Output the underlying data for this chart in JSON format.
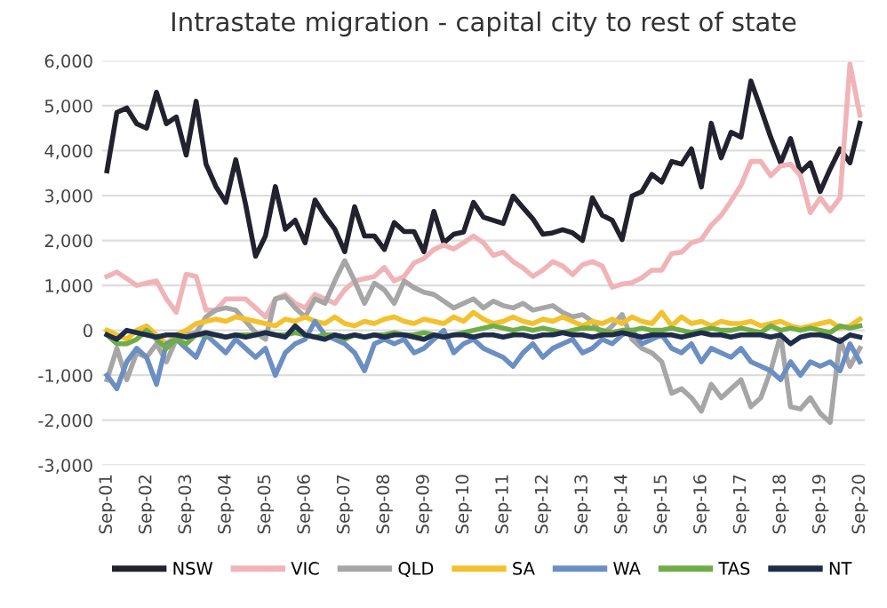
{
  "chart_data": {
    "type": "line",
    "title": "Intrastate migration - capital city to rest of state",
    "categories": [
      "Sep-01",
      null,
      null,
      null,
      "Sep-02",
      null,
      null,
      null,
      "Sep-03",
      null,
      null,
      null,
      "Sep-04",
      null,
      null,
      null,
      "Sep-05",
      null,
      null,
      null,
      "Sep-06",
      null,
      null,
      null,
      "Sep-07",
      null,
      null,
      null,
      "Sep-08",
      null,
      null,
      null,
      "Sep-09",
      null,
      null,
      null,
      "Sep-10",
      null,
      null,
      null,
      "Sep-11",
      null,
      null,
      null,
      "Sep-12",
      null,
      null,
      null,
      "Sep-13",
      null,
      null,
      null,
      "Sep-14",
      null,
      null,
      null,
      "Sep-15",
      null,
      null,
      null,
      "Sep-16",
      null,
      null,
      null,
      "Sep-17",
      null,
      null,
      null,
      "Sep-18",
      null,
      null,
      null,
      "Sep-19",
      null,
      null,
      null,
      "Sep-20"
    ],
    "ylim": [
      -3000,
      6000
    ],
    "yticks": [
      {
        "value": -3000,
        "label": "-3,000"
      },
      {
        "value": -2000,
        "label": "-2,000"
      },
      {
        "value": -1000,
        "label": "-1,000"
      },
      0,
      {
        "value": 1000,
        "label": "1,000"
      },
      {
        "value": 2000,
        "label": "2,000"
      },
      {
        "value": 3000,
        "label": "3,000"
      },
      {
        "value": 4000,
        "label": "4,000"
      },
      {
        "value": 5000,
        "label": "5,000"
      },
      {
        "value": 6000,
        "label": "6,000"
      }
    ],
    "grid": "y",
    "legend": "bottom",
    "marker": "none",
    "line_style": "solid",
    "series": [
      {
        "name": "NSW",
        "color": "#22222e",
        "values": [
          3550,
          4850,
          4950,
          4600,
          4500,
          5300,
          4600,
          4750,
          3900,
          5100,
          3700,
          3200,
          2850,
          3800,
          2800,
          1650,
          2100,
          3200,
          2250,
          2450,
          1950,
          2900,
          2550,
          2250,
          1750,
          2750,
          2100,
          2100,
          1800,
          2400,
          2200,
          2200,
          1750,
          2650,
          1950,
          2140,
          2190,
          2850,
          2520,
          2450,
          2380,
          2990,
          2730,
          2480,
          2140,
          2170,
          2240,
          2170,
          2000,
          2950,
          2560,
          2450,
          2020,
          2990,
          3090,
          3470,
          3300,
          3760,
          3700,
          4040,
          3190,
          4610,
          3840,
          4410,
          4300,
          5550,
          4940,
          4300,
          3730,
          4270,
          3520,
          3730,
          3090,
          3590,
          4040,
          3730,
          4610
        ]
      },
      {
        "name": "VIC",
        "color": "#f0b4b8",
        "values": [
          1200,
          1300,
          1150,
          1000,
          1050,
          1100,
          700,
          400,
          1250,
          1200,
          450,
          450,
          700,
          700,
          700,
          500,
          300,
          700,
          800,
          600,
          500,
          800,
          700,
          600,
          900,
          1100,
          1150,
          1200,
          1400,
          1100,
          1200,
          1500,
          1600,
          1800,
          1900,
          1810,
          1950,
          2100,
          1950,
          1670,
          1740,
          1530,
          1390,
          1200,
          1340,
          1530,
          1430,
          1240,
          1460,
          1530,
          1430,
          960,
          1030,
          1060,
          1170,
          1340,
          1340,
          1710,
          1740,
          1950,
          2020,
          2340,
          2560,
          2880,
          3230,
          3760,
          3760,
          3440,
          3660,
          3700,
          3440,
          2620,
          2950,
          2660,
          2950,
          5930,
          4790
        ]
      },
      {
        "name": "QLD",
        "color": "#a6a6a6",
        "values": [
          -1100,
          -400,
          -1100,
          -500,
          -600,
          -300,
          -700,
          -200,
          -100,
          -50,
          300,
          450,
          500,
          450,
          200,
          -50,
          -200,
          700,
          750,
          500,
          300,
          700,
          600,
          1100,
          1550,
          1100,
          600,
          1050,
          900,
          600,
          1100,
          950,
          850,
          800,
          650,
          500,
          600,
          700,
          500,
          650,
          550,
          500,
          600,
          450,
          500,
          550,
          400,
          300,
          350,
          200,
          -100,
          100,
          350,
          -200,
          -400,
          -500,
          -700,
          -1400,
          -1300,
          -1500,
          -1800,
          -1200,
          -1500,
          -1300,
          -1100,
          -1700,
          -1500,
          -900,
          -100,
          -1700,
          -1750,
          -1500,
          -1850,
          -2050,
          -200,
          -800,
          -400
        ]
      },
      {
        "name": "SA",
        "color": "#f2c12e",
        "values": [
          0,
          -100,
          -200,
          0,
          100,
          -100,
          -300,
          -100,
          0,
          150,
          200,
          250,
          200,
          300,
          250,
          200,
          150,
          100,
          250,
          200,
          300,
          200,
          150,
          300,
          150,
          100,
          200,
          150,
          250,
          300,
          200,
          150,
          250,
          200,
          150,
          300,
          200,
          400,
          250,
          150,
          200,
          300,
          200,
          150,
          250,
          200,
          300,
          200,
          100,
          200,
          150,
          250,
          150,
          300,
          200,
          150,
          400,
          100,
          300,
          150,
          200,
          100,
          200,
          150,
          150,
          200,
          100,
          150,
          200,
          100,
          50,
          100,
          150,
          200,
          50,
          100,
          250
        ]
      },
      {
        "name": "WA",
        "color": "#6b8fc2",
        "values": [
          -1000,
          -1300,
          -700,
          -400,
          -600,
          -1200,
          -300,
          -200,
          -400,
          -600,
          -100,
          -300,
          -500,
          -200,
          -400,
          -600,
          -400,
          -1000,
          -500,
          -300,
          -200,
          200,
          -100,
          -200,
          -300,
          -500,
          -900,
          -300,
          -200,
          -300,
          -200,
          -500,
          -400,
          -200,
          0,
          -500,
          -300,
          -200,
          -400,
          -500,
          -600,
          -800,
          -500,
          -300,
          -600,
          -400,
          -300,
          -200,
          -500,
          -400,
          -200,
          -300,
          -100,
          0,
          -300,
          -200,
          -100,
          -400,
          -500,
          -300,
          -700,
          -400,
          -500,
          -600,
          -400,
          -700,
          -800,
          -900,
          -1100,
          -700,
          -1000,
          -700,
          -800,
          -700,
          -900,
          -300,
          -700
        ]
      },
      {
        "name": "TAS",
        "color": "#70ad47",
        "values": [
          -100,
          -300,
          -300,
          -200,
          0,
          -200,
          -400,
          -200,
          -300,
          -100,
          -100,
          -100,
          -150,
          -100,
          -100,
          -100,
          -50,
          -100,
          -100,
          -50,
          -100,
          -150,
          -100,
          -100,
          -200,
          -100,
          -150,
          -100,
          -100,
          -50,
          -100,
          -100,
          -50,
          -100,
          -150,
          -100,
          -50,
          0,
          50,
          100,
          50,
          0,
          50,
          0,
          50,
          0,
          -50,
          0,
          50,
          50,
          0,
          -50,
          0,
          0,
          50,
          0,
          0,
          50,
          0,
          -50,
          0,
          50,
          0,
          0,
          50,
          0,
          -50,
          100,
          0,
          50,
          0,
          50,
          0,
          -50,
          100,
          50,
          100
        ]
      },
      {
        "name": "NT",
        "color": "#1f2d4a",
        "values": [
          -100,
          -200,
          0,
          -50,
          -100,
          -150,
          -100,
          -100,
          -150,
          -100,
          -50,
          -100,
          -150,
          -100,
          -150,
          -100,
          -50,
          -100,
          -150,
          100,
          -100,
          -150,
          -200,
          -100,
          -150,
          -100,
          -150,
          -100,
          -150,
          -100,
          -100,
          -150,
          -200,
          -100,
          -150,
          -100,
          -100,
          -150,
          -100,
          -100,
          -150,
          -100,
          -100,
          -150,
          -100,
          -100,
          -50,
          -100,
          -100,
          -150,
          -100,
          -100,
          -50,
          -100,
          -150,
          -100,
          -100,
          -100,
          -150,
          -100,
          -50,
          -100,
          -100,
          -150,
          -100,
          -100,
          -100,
          -150,
          -100,
          -300,
          -150,
          -100,
          -100,
          -150,
          -250,
          -100,
          -150
        ]
      }
    ]
  }
}
